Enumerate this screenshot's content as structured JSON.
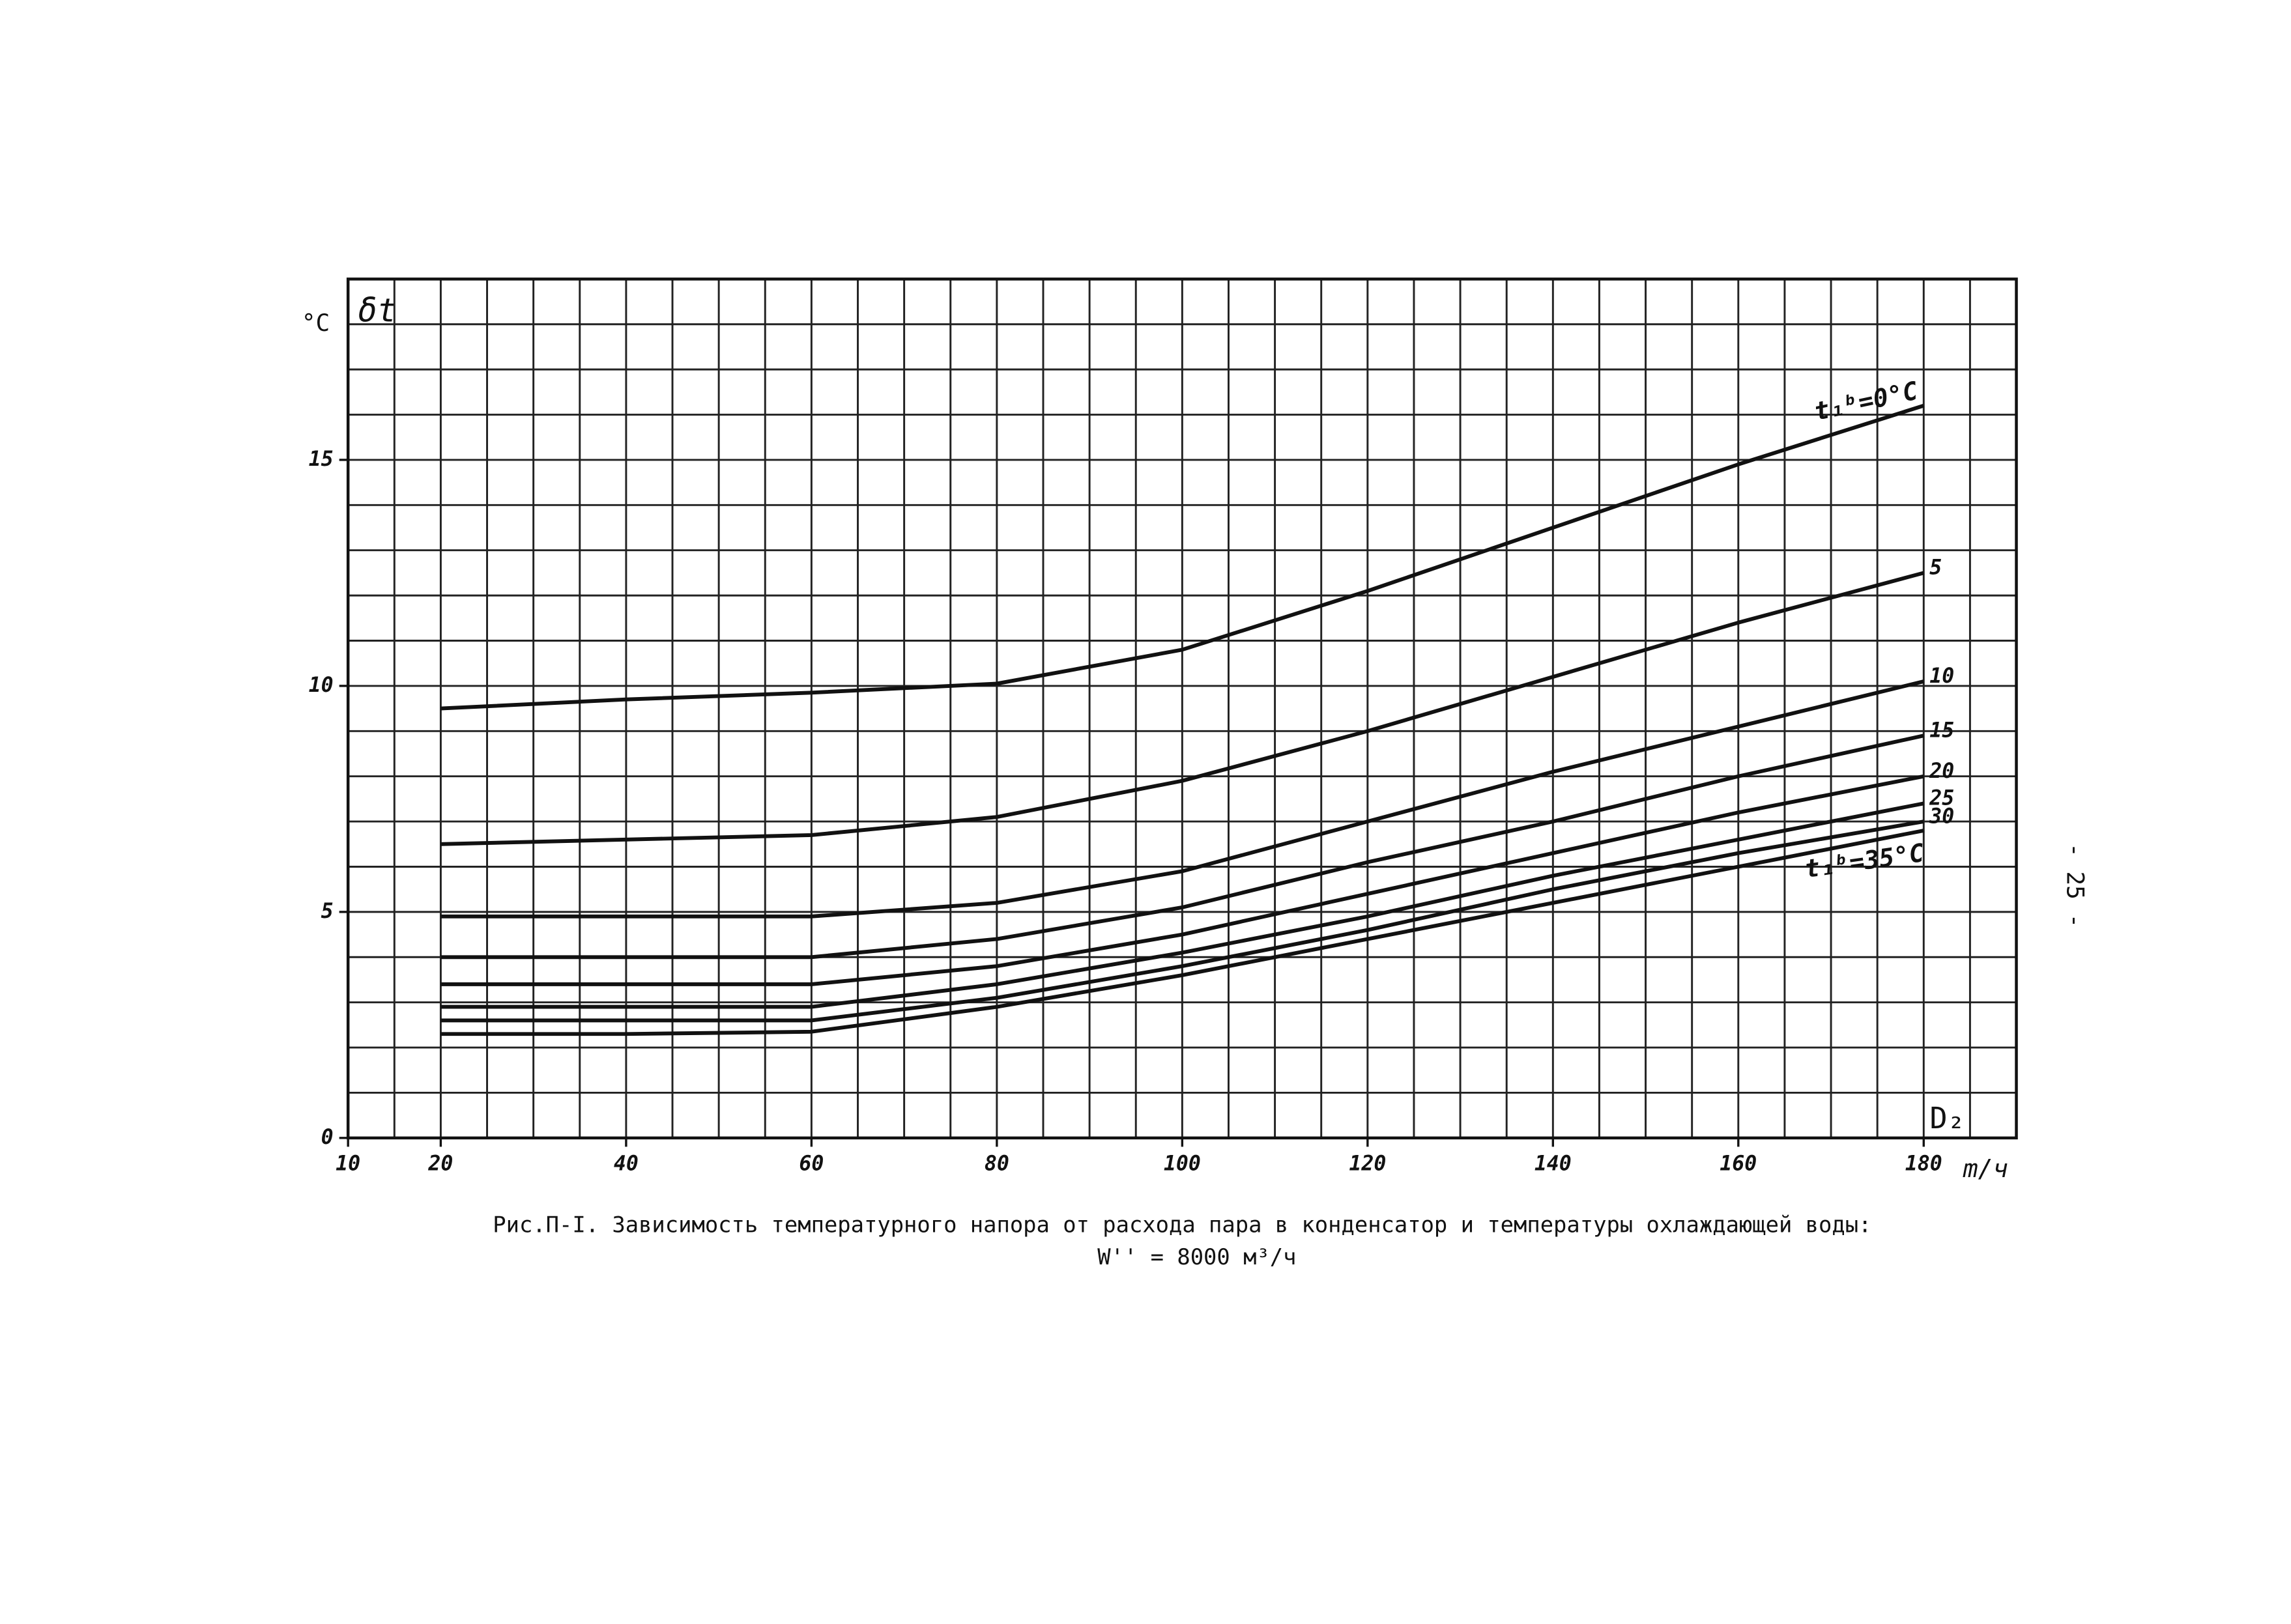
{
  "chart_data": {
    "type": "line",
    "y_unit": "°C",
    "y_label": "δt",
    "x_label": "D₂",
    "x_unit": "m/ч",
    "caption": "Рис.П-I. Зависимость температурного напора от расхода пара в конденсатор и температуры охлаждающей воды:",
    "caption_sub": "W'' = 8000 м³/ч",
    "page_number": "- 25 -",
    "x": [
      20,
      40,
      60,
      80,
      100,
      120,
      140,
      160,
      180
    ],
    "series": [
      {
        "name": "t₁ᵇ=0°C",
        "color": "#111111",
        "values": [
          9.5,
          9.7,
          9.85,
          10.05,
          10.8,
          12.1,
          13.5,
          14.9,
          16.2
        ]
      },
      {
        "name": "5",
        "color": "#111111",
        "values": [
          6.5,
          6.6,
          6.7,
          7.1,
          7.9,
          9.0,
          10.2,
          11.4,
          12.5
        ]
      },
      {
        "name": "10",
        "color": "#111111",
        "values": [
          4.9,
          4.9,
          4.9,
          5.2,
          5.9,
          7.0,
          8.1,
          9.1,
          10.1
        ]
      },
      {
        "name": "15",
        "color": "#111111",
        "values": [
          4.0,
          4.0,
          4.0,
          4.4,
          5.1,
          6.1,
          7.0,
          8.0,
          8.9
        ]
      },
      {
        "name": "20",
        "color": "#111111",
        "values": [
          3.4,
          3.4,
          3.4,
          3.8,
          4.5,
          5.4,
          6.3,
          7.2,
          8.0
        ]
      },
      {
        "name": "25",
        "color": "#111111",
        "values": [
          2.9,
          2.9,
          2.9,
          3.4,
          4.1,
          4.9,
          5.8,
          6.6,
          7.4
        ]
      },
      {
        "name": "30",
        "color": "#111111",
        "values": [
          2.6,
          2.6,
          2.6,
          3.1,
          3.8,
          4.6,
          5.5,
          6.3,
          7.0
        ]
      },
      {
        "name": "t₁ᵇ=35°C",
        "color": "#111111",
        "values": [
          2.3,
          2.3,
          2.35,
          2.9,
          3.6,
          4.4,
          5.2,
          6.0,
          6.8
        ]
      }
    ],
    "xlim": [
      10,
      190
    ],
    "ylim": [
      0,
      19
    ],
    "xticks": [
      10,
      20,
      40,
      60,
      80,
      100,
      120,
      140,
      160,
      180
    ],
    "yticks": [
      0,
      5,
      10,
      15
    ],
    "x_grid_step": 5,
    "y_grid_step": 1,
    "grid": true
  }
}
